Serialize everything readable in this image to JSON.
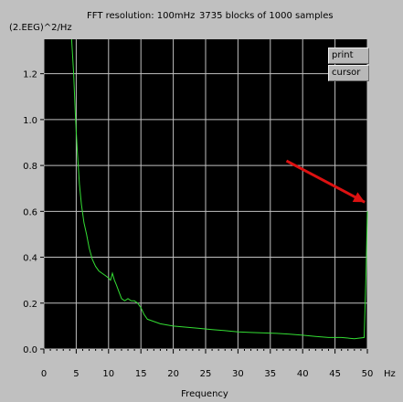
{
  "header": {
    "resolution": "FFT resolution: 100mHz",
    "blocks": "3735 blocks of 1000 samples"
  },
  "buttons": {
    "print": "print",
    "cursor": "cursor"
  },
  "chart_data": {
    "type": "line",
    "ylabel": "(2.EEG)^2/Hz",
    "xlabel": "Frequency",
    "x_unit": "Hz",
    "xlim": [
      0,
      50
    ],
    "ylim": [
      0,
      1.35
    ],
    "x_ticks": [
      "0",
      "5",
      "10",
      "15",
      "20",
      "25",
      "30",
      "35",
      "40",
      "45",
      "50"
    ],
    "y_ticks": [
      "0.0",
      "0.2",
      "0.4",
      "0.6",
      "0.8",
      "1.0",
      "1.2"
    ],
    "grid": true,
    "background": "#000000",
    "grid_color": "#c0c0c0",
    "line_color": "#33dd33",
    "arrow_color": "#dd1111",
    "series": [
      {
        "x": [
          4.3,
          4.6,
          4.9,
          5.2,
          5.5,
          5.8,
          6.2,
          6.6,
          7.0,
          7.5,
          8.0,
          8.5,
          9.0,
          9.5,
          10.0,
          10.3,
          10.6,
          10.9,
          11.2,
          11.6,
          12.0,
          12.5,
          13.0,
          13.5,
          14.0,
          14.5,
          15.0,
          15.5,
          16.0,
          17.0,
          18.0,
          19.0,
          20.0,
          22.0,
          24.0,
          26.0,
          28.0,
          30.0,
          32.0,
          34.0,
          36.0,
          38.0,
          40.0,
          42.0,
          44.0,
          46.0,
          48.0,
          49.5,
          49.8,
          50.0
        ],
        "y": [
          1.35,
          1.2,
          1.0,
          0.85,
          0.72,
          0.63,
          0.55,
          0.5,
          0.44,
          0.39,
          0.36,
          0.34,
          0.33,
          0.32,
          0.31,
          0.3,
          0.33,
          0.3,
          0.28,
          0.25,
          0.22,
          0.21,
          0.22,
          0.21,
          0.21,
          0.2,
          0.18,
          0.15,
          0.13,
          0.12,
          0.11,
          0.105,
          0.1,
          0.095,
          0.09,
          0.085,
          0.08,
          0.075,
          0.072,
          0.07,
          0.068,
          0.065,
          0.06,
          0.055,
          0.05,
          0.05,
          0.045,
          0.05,
          0.34,
          0.6
        ]
      }
    ],
    "annotation": {
      "type": "arrow",
      "from": [
        37.5,
        0.82
      ],
      "to": [
        49.6,
        0.64
      ]
    }
  }
}
